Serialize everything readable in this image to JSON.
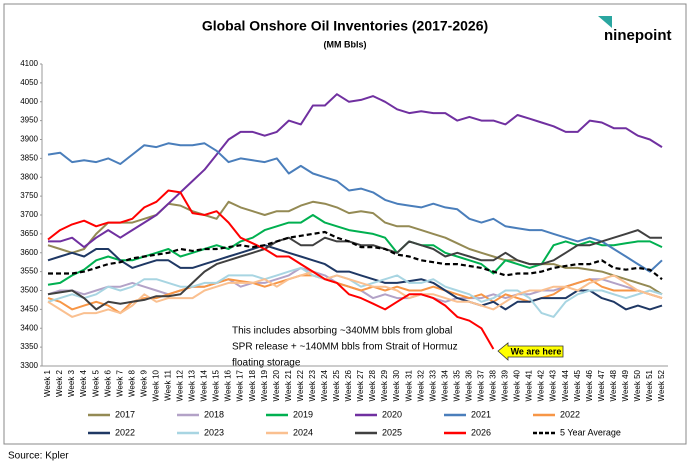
{
  "chart_data": {
    "type": "line",
    "title": "Global Onshore Oil Inventories (2017-2026)",
    "subtitle": "(MM Bbls)",
    "categories": [
      "Week 1",
      "Week 2",
      "Week 3",
      "Week 4",
      "Week 5",
      "Week 6",
      "Week 7",
      "Week 8",
      "Week 9",
      "Week 10",
      "Week 11",
      "Week 12",
      "Week 13",
      "Week 14",
      "Week 15",
      "Week 16",
      "Week 17",
      "Week 18",
      "Week 19",
      "Week 20",
      "Week 21",
      "Week 22",
      "Week 23",
      "Week 24",
      "Week 25",
      "Week 26",
      "Week 27",
      "Week 28",
      "Week 29",
      "Week 30",
      "Week 31",
      "Week 32",
      "Week 33",
      "Week 34",
      "Week 35",
      "Week 36",
      "Week 37",
      "Week 38",
      "Week 39",
      "Week 40",
      "Week 41",
      "Week 42",
      "Week 43",
      "Week 44",
      "Week 45",
      "Week 46",
      "Week 47",
      "Week 48",
      "Week 49",
      "Week 50",
      "Week 51",
      "Week 52"
    ],
    "ylim": [
      3300,
      4100
    ],
    "yticks": [
      3300,
      3350,
      3400,
      3450,
      3500,
      3550,
      3600,
      3650,
      3700,
      3750,
      3800,
      3850,
      3900,
      3950,
      4000,
      4050,
      4100
    ],
    "grid": false,
    "series": [
      {
        "name": "2017",
        "color": "#948a54",
        "values": [
          3620,
          3610,
          3600,
          3610,
          3650,
          3680,
          3680,
          3680,
          3690,
          3700,
          3730,
          3725,
          3710,
          3700,
          3690,
          3735,
          3720,
          3710,
          3700,
          3710,
          3710,
          3725,
          3735,
          3730,
          3720,
          3705,
          3710,
          3705,
          3680,
          3670,
          3670,
          3660,
          3650,
          3640,
          3625,
          3610,
          3600,
          3590,
          3580,
          3580,
          3570,
          3570,
          3570,
          3560,
          3560,
          3555,
          3550,
          3540,
          3530,
          3520,
          3510,
          3490
        ]
      },
      {
        "name": "2018",
        "color": "#b3a2c7",
        "values": [
          3490,
          3500,
          3500,
          3490,
          3500,
          3510,
          3510,
          3520,
          3510,
          3500,
          3490,
          3500,
          3510,
          3510,
          3520,
          3530,
          3510,
          3520,
          3520,
          3530,
          3540,
          3560,
          3550,
          3540,
          3520,
          3510,
          3500,
          3480,
          3490,
          3480,
          3480,
          3490,
          3480,
          3470,
          3480,
          3480,
          3480,
          3490,
          3480,
          3490,
          3490,
          3500,
          3500,
          3510,
          3520,
          3530,
          3530,
          3520,
          3510,
          3500,
          3490,
          3480
        ]
      },
      {
        "name": "2019",
        "color": "#00b050",
        "values": [
          3515,
          3520,
          3540,
          3555,
          3580,
          3590,
          3580,
          3580,
          3590,
          3600,
          3610,
          3590,
          3600,
          3610,
          3620,
          3610,
          3630,
          3640,
          3660,
          3670,
          3680,
          3680,
          3700,
          3680,
          3670,
          3660,
          3655,
          3650,
          3640,
          3600,
          3630,
          3620,
          3620,
          3600,
          3590,
          3580,
          3570,
          3545,
          3580,
          3570,
          3560,
          3570,
          3620,
          3630,
          3620,
          3630,
          3620,
          3620,
          3625,
          3630,
          3630,
          3615
        ]
      },
      {
        "name": "2020",
        "color": "#7030a0",
        "values": [
          3630,
          3630,
          3640,
          3615,
          3640,
          3660,
          3640,
          3660,
          3680,
          3700,
          3730,
          3760,
          3790,
          3820,
          3860,
          3900,
          3920,
          3920,
          3910,
          3920,
          3950,
          3940,
          3990,
          3990,
          4020,
          4000,
          4005,
          4015,
          4000,
          3980,
          3970,
          3975,
          3970,
          3970,
          3950,
          3960,
          3950,
          3950,
          3940,
          3965,
          3955,
          3945,
          3935,
          3920,
          3920,
          3950,
          3945,
          3930,
          3930,
          3910,
          3900,
          3880
        ]
      },
      {
        "name": "2021",
        "color": "#4a7ebb",
        "values": [
          3860,
          3865,
          3840,
          3845,
          3840,
          3850,
          3835,
          3860,
          3885,
          3880,
          3890,
          3885,
          3885,
          3890,
          3870,
          3840,
          3850,
          3845,
          3840,
          3850,
          3810,
          3830,
          3810,
          3800,
          3790,
          3765,
          3770,
          3760,
          3740,
          3730,
          3725,
          3720,
          3730,
          3720,
          3715,
          3690,
          3680,
          3690,
          3670,
          3665,
          3660,
          3660,
          3650,
          3640,
          3630,
          3640,
          3630,
          3610,
          3590,
          3570,
          3550,
          3580
        ]
      },
      {
        "name": "2022",
        "color": "#f79646",
        "values": [
          3480,
          3470,
          3450,
          3460,
          3470,
          3460,
          3440,
          3470,
          3480,
          3480,
          3490,
          3500,
          3510,
          3510,
          3520,
          3530,
          3525,
          3520,
          3510,
          3520,
          3530,
          3540,
          3540,
          3530,
          3520,
          3510,
          3500,
          3510,
          3500,
          3510,
          3500,
          3500,
          3510,
          3500,
          3490,
          3480,
          3490,
          3470,
          3490,
          3480,
          3470,
          3480,
          3490,
          3510,
          3520,
          3530,
          3510,
          3500,
          3500,
          3500,
          3490,
          3480
        ]
      },
      {
        "name": "2022",
        "color": "#1f3864",
        "values": [
          3580,
          3590,
          3600,
          3590,
          3610,
          3610,
          3580,
          3560,
          3570,
          3580,
          3580,
          3560,
          3560,
          3570,
          3580,
          3590,
          3600,
          3610,
          3620,
          3610,
          3600,
          3590,
          3580,
          3570,
          3550,
          3550,
          3540,
          3530,
          3520,
          3520,
          3525,
          3530,
          3520,
          3500,
          3480,
          3470,
          3460,
          3470,
          3450,
          3470,
          3470,
          3480,
          3480,
          3480,
          3500,
          3500,
          3480,
          3470,
          3450,
          3460,
          3450,
          3460
        ]
      },
      {
        "name": "2023",
        "color": "#a8d5e2",
        "values": [
          3470,
          3480,
          3490,
          3480,
          3490,
          3510,
          3500,
          3510,
          3530,
          3530,
          3520,
          3510,
          3510,
          3520,
          3520,
          3540,
          3540,
          3540,
          3530,
          3540,
          3550,
          3560,
          3540,
          3530,
          3540,
          3530,
          3510,
          3520,
          3530,
          3540,
          3520,
          3520,
          3530,
          3510,
          3500,
          3490,
          3470,
          3480,
          3500,
          3500,
          3480,
          3440,
          3430,
          3470,
          3490,
          3500,
          3500,
          3490,
          3480,
          3490,
          3500,
          3490
        ]
      },
      {
        "name": "2024",
        "color": "#fac090",
        "values": [
          3470,
          3450,
          3430,
          3440,
          3440,
          3450,
          3440,
          3460,
          3490,
          3470,
          3480,
          3480,
          3480,
          3500,
          3510,
          3520,
          3520,
          3520,
          3530,
          3510,
          3530,
          3540,
          3550,
          3530,
          3540,
          3530,
          3520,
          3510,
          3510,
          3500,
          3480,
          3490,
          3490,
          3480,
          3470,
          3470,
          3460,
          3450,
          3470,
          3490,
          3500,
          3500,
          3510,
          3510,
          3500,
          3520,
          3530,
          3540,
          3520,
          3500,
          3490,
          3480
        ]
      },
      {
        "name": "2025",
        "color": "#404040",
        "values": [
          3490,
          3495,
          3500,
          3480,
          3450,
          3470,
          3465,
          3470,
          3475,
          3485,
          3485,
          3490,
          3520,
          3550,
          3570,
          3580,
          3590,
          3600,
          3610,
          3630,
          3640,
          3620,
          3620,
          3640,
          3630,
          3630,
          3620,
          3620,
          3610,
          3600,
          3630,
          3620,
          3610,
          3590,
          3600,
          3590,
          3580,
          3580,
          3600,
          3580,
          3570,
          3570,
          3580,
          3600,
          3620,
          3620,
          3630,
          3640,
          3650,
          3660,
          3640,
          3640
        ]
      },
      {
        "name": "2026",
        "color": "#ff0000",
        "values": [
          3635,
          3660,
          3675,
          3685,
          3670,
          3680,
          3680,
          3690,
          3720,
          3735,
          3765,
          3760,
          3705,
          3700,
          3710,
          3680,
          3640,
          3625,
          3610,
          3590,
          3590,
          3570,
          3550,
          3530,
          3520,
          3490,
          3480,
          3465,
          3450,
          3470,
          3490,
          3490,
          3480,
          3460,
          3430,
          3420,
          3400,
          3345,
          null,
          null,
          null,
          null,
          null,
          null,
          null,
          null,
          null,
          null,
          null,
          null,
          null,
          null
        ]
      },
      {
        "name": "5 Year Average",
        "color": "#000000",
        "style": "dashed",
        "values": [
          3545,
          3545,
          3545,
          3550,
          3560,
          3570,
          3575,
          3585,
          3590,
          3595,
          3600,
          3610,
          3605,
          3610,
          3610,
          3615,
          3620,
          3615,
          3620,
          3630,
          3640,
          3645,
          3650,
          3655,
          3640,
          3630,
          3615,
          3615,
          3610,
          3595,
          3590,
          3580,
          3575,
          3570,
          3570,
          3565,
          3560,
          3550,
          3540,
          3545,
          3545,
          3550,
          3560,
          3565,
          3570,
          3570,
          3580,
          3560,
          3555,
          3560,
          3555,
          3530
        ]
      }
    ],
    "annotations": [
      "This includes absorbing ~340MM bbls from global",
      "SPR release + ~140MM bbls from Strait of Hormuz",
      "floating storage"
    ],
    "callout": "We are here"
  },
  "source": "Source: Kpler",
  "logo": "ninepoint"
}
